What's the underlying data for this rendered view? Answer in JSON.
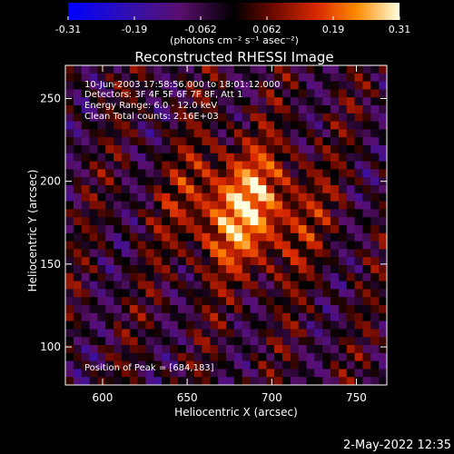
{
  "chart_data": {
    "type": "heatmap",
    "title": "Reconstructed RHESSI Image",
    "xlabel": "Heliocentric X (arcsec)",
    "ylabel": "Heliocentric Y (arcsec)",
    "xlim": [
      578,
      768
    ],
    "ylim": [
      77,
      270
    ],
    "xticks": [
      600,
      650,
      700,
      750
    ],
    "yticks": [
      100,
      150,
      200,
      250
    ],
    "colorbar": {
      "min": -0.31,
      "max": 0.31,
      "ticks": [
        "-0.31",
        "-0.19",
        "-0.062",
        "0.062",
        "0.19",
        "0.31"
      ],
      "unit_label": "(photons cm⁻² s⁻¹ asec⁻²)"
    },
    "annotations": [
      "10-Jun-2003 17:58:56.000 to 18:01:12.000",
      "Detectors: 3F 4F 5F 6F 7F 8F, Att 1",
      "Energy Range: 6.0 - 12.0 keV",
      "Clean    Total counts: 2.16E+03"
    ],
    "peak": {
      "x": 684,
      "y": 183,
      "label": "Position of Peak = [684,183]"
    },
    "footer_date": "2-May-2022 12:35"
  }
}
